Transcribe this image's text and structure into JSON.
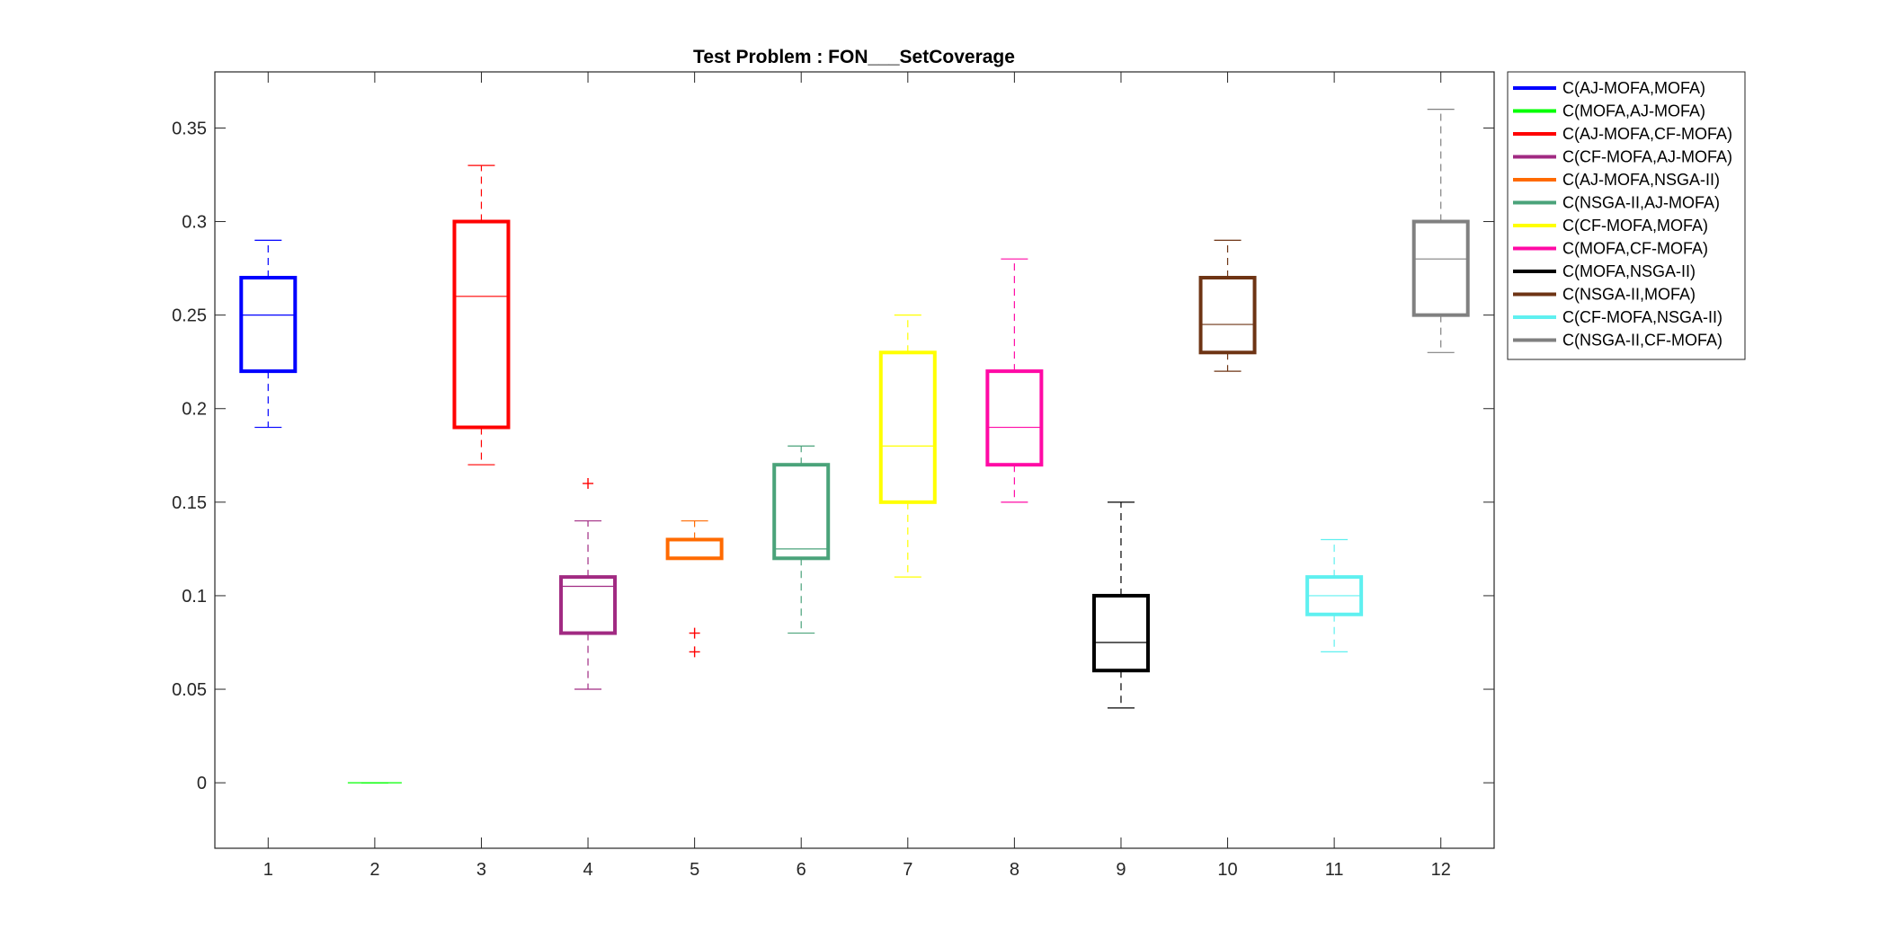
{
  "chart_data": {
    "type": "boxplot",
    "title": "Test Problem : FON___SetCoverage",
    "xlabel": "",
    "ylabel": "",
    "xlim": [
      0.5,
      12.5
    ],
    "ylim": [
      -0.035,
      0.38
    ],
    "xticks": [
      1,
      2,
      3,
      4,
      5,
      6,
      7,
      8,
      9,
      10,
      11,
      12
    ],
    "xtick_labels": [
      "1",
      "2",
      "3",
      "4",
      "5",
      "6",
      "7",
      "8",
      "9",
      "10",
      "11",
      "12"
    ],
    "yticks": [
      0,
      0.05,
      0.1,
      0.15,
      0.2,
      0.25,
      0.3,
      0.35
    ],
    "ytick_labels": [
      "0",
      "0.05",
      "0.1",
      "0.15",
      "0.2",
      "0.25",
      "0.3",
      "0.35"
    ],
    "legend_position": "outside top-right",
    "grid": false,
    "series": [
      {
        "name": "C(AJ-MOFA,MOFA)",
        "x": 1,
        "color": "#0000ff",
        "whisker_low": 0.19,
        "q1": 0.22,
        "median": 0.25,
        "q3": 0.27,
        "whisker_high": 0.29,
        "outliers": []
      },
      {
        "name": "C(MOFA,AJ-MOFA)",
        "x": 2,
        "color": "#00ff00",
        "whisker_low": 0,
        "q1": 0,
        "median": 0,
        "q3": 0,
        "whisker_high": 0,
        "outliers": []
      },
      {
        "name": "C(AJ-MOFA,CF-MOFA)",
        "x": 3,
        "color": "#ff0000",
        "whisker_low": 0.17,
        "q1": 0.19,
        "median": 0.26,
        "q3": 0.3,
        "whisker_high": 0.33,
        "outliers": []
      },
      {
        "name": "C(CF-MOFA,AJ-MOFA)",
        "x": 4,
        "color": "#a12a82",
        "whisker_low": 0.05,
        "q1": 0.08,
        "median": 0.105,
        "q3": 0.11,
        "whisker_high": 0.14,
        "outliers": [
          0.16
        ]
      },
      {
        "name": "C(AJ-MOFA,NSGA-II)",
        "x": 5,
        "color": "#ff6a00",
        "whisker_low": 0.12,
        "q1": 0.12,
        "median": 0.13,
        "q3": 0.13,
        "whisker_high": 0.14,
        "outliers": [
          0.08,
          0.07
        ]
      },
      {
        "name": "C(NSGA-II,AJ-MOFA)",
        "x": 6,
        "color": "#4aa37a",
        "whisker_low": 0.08,
        "q1": 0.12,
        "median": 0.125,
        "q3": 0.17,
        "whisker_high": 0.18,
        "outliers": []
      },
      {
        "name": "C(CF-MOFA,MOFA)",
        "x": 7,
        "color": "#ffff00",
        "whisker_low": 0.11,
        "q1": 0.15,
        "median": 0.18,
        "q3": 0.23,
        "whisker_high": 0.25,
        "outliers": []
      },
      {
        "name": "C(MOFA,CF-MOFA)",
        "x": 8,
        "color": "#ff0aa5",
        "whisker_low": 0.15,
        "q1": 0.17,
        "median": 0.19,
        "q3": 0.22,
        "whisker_high": 0.28,
        "outliers": []
      },
      {
        "name": "C(MOFA,NSGA-II)",
        "x": 9,
        "color": "#000000",
        "whisker_low": 0.04,
        "q1": 0.06,
        "median": 0.075,
        "q3": 0.1,
        "whisker_high": 0.15,
        "outliers": []
      },
      {
        "name": "C(NSGA-II,MOFA)",
        "x": 10,
        "color": "#6e3414",
        "whisker_low": 0.22,
        "q1": 0.23,
        "median": 0.245,
        "q3": 0.27,
        "whisker_high": 0.29,
        "outliers": []
      },
      {
        "name": "C(CF-MOFA,NSGA-II)",
        "x": 11,
        "color": "#5ff0f0",
        "whisker_low": 0.07,
        "q1": 0.09,
        "median": 0.1,
        "q3": 0.11,
        "whisker_high": 0.13,
        "outliers": []
      },
      {
        "name": "C(NSGA-II,CF-MOFA)",
        "x": 12,
        "color": "#808080",
        "whisker_low": 0.23,
        "q1": 0.25,
        "median": 0.28,
        "q3": 0.3,
        "whisker_high": 0.36,
        "outliers": []
      }
    ]
  }
}
